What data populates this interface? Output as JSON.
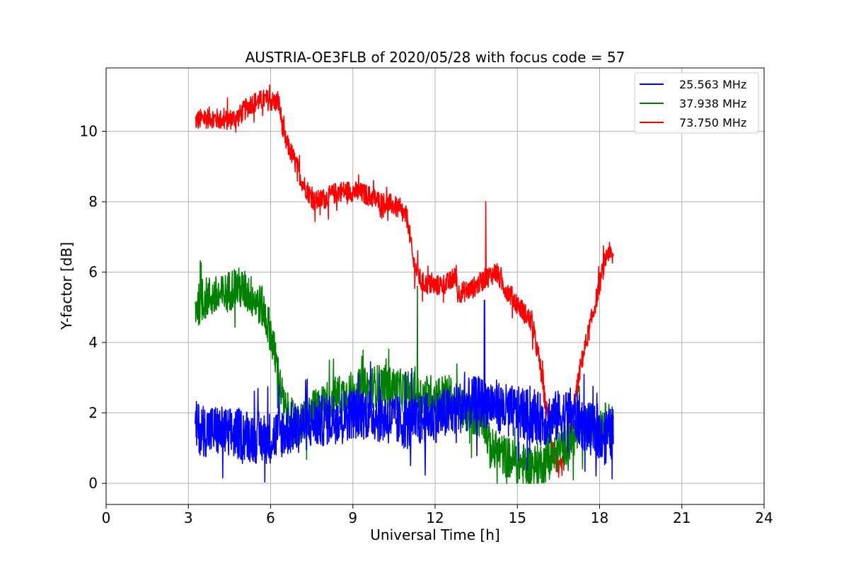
{
  "chart_data": {
    "type": "line",
    "title": "AUSTRIA-OE3FLB of 2020/05/28 with focus code = 57",
    "xlabel": "Universal Time [h]",
    "ylabel": "Y-factor [dB]",
    "xlim": [
      0,
      24
    ],
    "ylim": [
      -0.6,
      11.8
    ],
    "xticks": [
      0,
      3,
      6,
      9,
      12,
      15,
      18,
      21,
      24
    ],
    "yticks": [
      0,
      2,
      4,
      6,
      8,
      10
    ],
    "grid": true,
    "legend_position": "top-right",
    "series": [
      {
        "name": "25.563 MHz",
        "color": "#0000ff",
        "noise": 0.75,
        "points": [
          [
            3.25,
            1.6
          ],
          [
            3.6,
            1.5
          ],
          [
            4.0,
            1.5
          ],
          [
            4.5,
            1.4
          ],
          [
            5.0,
            1.4
          ],
          [
            5.5,
            1.3
          ],
          [
            6.0,
            1.3
          ],
          [
            6.5,
            1.5
          ],
          [
            7.0,
            1.6
          ],
          [
            7.5,
            1.7
          ],
          [
            8.0,
            1.8
          ],
          [
            8.5,
            1.9
          ],
          [
            9.0,
            2.0
          ],
          [
            9.5,
            2.0
          ],
          [
            10.0,
            1.9
          ],
          [
            10.5,
            1.8
          ],
          [
            11.0,
            1.7
          ],
          [
            11.5,
            1.8
          ],
          [
            12.0,
            1.9
          ],
          [
            12.5,
            2.0
          ],
          [
            13.0,
            2.2
          ],
          [
            13.5,
            2.3
          ],
          [
            14.0,
            2.3
          ],
          [
            14.5,
            2.1
          ],
          [
            15.0,
            2.0
          ],
          [
            15.5,
            1.9
          ],
          [
            16.0,
            1.8
          ],
          [
            16.5,
            1.9
          ],
          [
            17.0,
            2.0
          ],
          [
            17.5,
            1.6
          ],
          [
            18.0,
            1.4
          ],
          [
            18.5,
            1.4
          ]
        ]
      },
      {
        "name": "37.938 MHz",
        "color": "#008000",
        "noise": 0.6,
        "points": [
          [
            3.25,
            5.0
          ],
          [
            3.7,
            5.3
          ],
          [
            4.2,
            5.3
          ],
          [
            4.7,
            5.6
          ],
          [
            5.2,
            5.4
          ],
          [
            5.7,
            5.0
          ],
          [
            6.0,
            4.3
          ],
          [
            6.25,
            3.2
          ],
          [
            6.5,
            2.1
          ],
          [
            7.0,
            1.6
          ],
          [
            7.5,
            2.0
          ],
          [
            8.0,
            2.3
          ],
          [
            8.5,
            2.5
          ],
          [
            9.0,
            2.6
          ],
          [
            9.5,
            2.7
          ],
          [
            10.0,
            2.8
          ],
          [
            10.5,
            2.7
          ],
          [
            11.0,
            2.6
          ],
          [
            11.5,
            2.5
          ],
          [
            12.0,
            2.5
          ],
          [
            12.5,
            2.5
          ],
          [
            12.8,
            2.2
          ],
          [
            13.3,
            2.0
          ],
          [
            13.8,
            1.8
          ],
          [
            14.0,
            1.0
          ],
          [
            14.5,
            0.8
          ],
          [
            15.0,
            0.6
          ],
          [
            15.5,
            0.5
          ],
          [
            16.0,
            0.6
          ],
          [
            16.5,
            0.9
          ],
          [
            17.0,
            1.3
          ],
          [
            17.5,
            1.6
          ],
          [
            18.0,
            1.7
          ],
          [
            18.5,
            1.7
          ]
        ]
      },
      {
        "name": "73.750 MHz",
        "color": "#ff0000",
        "noise": 0.3,
        "points": [
          [
            3.25,
            10.3
          ],
          [
            3.8,
            10.4
          ],
          [
            4.3,
            10.3
          ],
          [
            4.8,
            10.4
          ],
          [
            5.3,
            10.8
          ],
          [
            5.8,
            10.9
          ],
          [
            6.3,
            10.8
          ],
          [
            6.5,
            9.8
          ],
          [
            6.8,
            9.3
          ],
          [
            7.2,
            8.5
          ],
          [
            7.6,
            8.0
          ],
          [
            8.0,
            8.1
          ],
          [
            8.5,
            8.3
          ],
          [
            9.0,
            8.3
          ],
          [
            9.5,
            8.2
          ],
          [
            10.0,
            8.0
          ],
          [
            10.5,
            7.9
          ],
          [
            10.9,
            7.6
          ],
          [
            11.0,
            7.5
          ],
          [
            11.2,
            6.3
          ],
          [
            11.5,
            5.7
          ],
          [
            12.0,
            5.6
          ],
          [
            12.5,
            5.7
          ],
          [
            12.8,
            5.9
          ],
          [
            12.8,
            5.4
          ],
          [
            13.3,
            5.5
          ],
          [
            13.8,
            5.8
          ],
          [
            14.2,
            6.0
          ],
          [
            14.6,
            5.5
          ],
          [
            15.0,
            5.1
          ],
          [
            15.5,
            4.6
          ],
          [
            15.8,
            3.5
          ],
          [
            16.0,
            2.4
          ],
          [
            16.2,
            1.4
          ],
          [
            16.5,
            0.3
          ],
          [
            16.8,
            0.8
          ],
          [
            17.0,
            1.8
          ],
          [
            17.3,
            3.3
          ],
          [
            17.6,
            4.3
          ],
          [
            17.9,
            5.3
          ],
          [
            18.1,
            6.0
          ],
          [
            18.3,
            6.6
          ],
          [
            18.5,
            6.4
          ]
        ]
      }
    ],
    "spikes": [
      {
        "series": "73.750 MHz",
        "x": 13.85,
        "y": 8.0
      },
      {
        "series": "25.563 MHz",
        "x": 13.8,
        "y": 5.2
      },
      {
        "series": "37.938 MHz",
        "x": 11.35,
        "y": 5.6
      }
    ]
  }
}
